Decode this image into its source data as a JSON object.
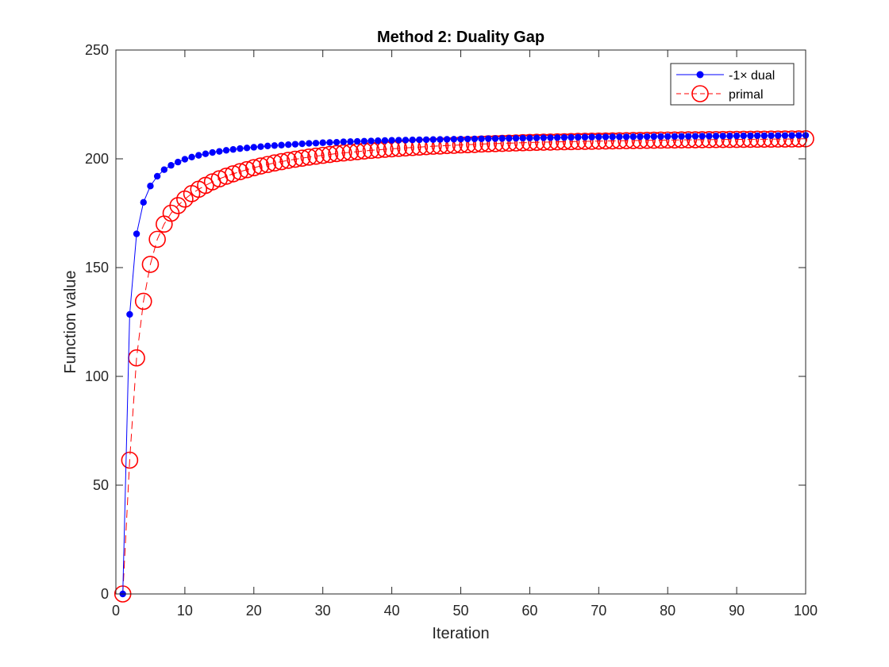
{
  "chart_data": {
    "type": "line",
    "title": "Method 2: Duality Gap",
    "xlabel": "Iteration",
    "ylabel": "Function value",
    "xlim": [
      0,
      100
    ],
    "ylim": [
      0,
      250
    ],
    "xticks": [
      0,
      10,
      20,
      30,
      40,
      50,
      60,
      70,
      80,
      90,
      100
    ],
    "yticks": [
      0,
      50,
      100,
      150,
      200,
      250
    ],
    "grid": false,
    "legend_position": "top-right",
    "series": [
      {
        "name": "-1× dual",
        "color": "#0000ff",
        "line_style": "solid",
        "marker": "filled-dot",
        "x": [
          1,
          2,
          3,
          4,
          5,
          6,
          7,
          8,
          9,
          10,
          11,
          12,
          13,
          14,
          15,
          16,
          17,
          18,
          19,
          20,
          21,
          22,
          23,
          24,
          25,
          26,
          27,
          28,
          29,
          30,
          31,
          32,
          33,
          34,
          35,
          36,
          37,
          38,
          39,
          40,
          41,
          42,
          43,
          44,
          45,
          46,
          47,
          48,
          49,
          50,
          51,
          52,
          53,
          54,
          55,
          56,
          57,
          58,
          59,
          60,
          61,
          62,
          63,
          64,
          65,
          66,
          67,
          68,
          69,
          70,
          71,
          72,
          73,
          74,
          75,
          76,
          77,
          78,
          79,
          80,
          81,
          82,
          83,
          84,
          85,
          86,
          87,
          88,
          89,
          90,
          91,
          92,
          93,
          94,
          95,
          96,
          97,
          98,
          99,
          100
        ],
        "y": [
          0,
          128.5,
          165.5,
          180,
          187.5,
          192,
          195,
          197,
          198.5,
          199.8,
          200.8,
          201.6,
          202.3,
          202.9,
          203.4,
          203.9,
          204.3,
          204.7,
          205,
          205.3,
          205.6,
          205.9,
          206.1,
          206.3,
          206.5,
          206.7,
          206.9,
          207.1,
          207.2,
          207.4,
          207.5,
          207.6,
          207.8,
          207.9,
          208,
          208.1,
          208.2,
          208.3,
          208.4,
          208.5,
          208.55,
          208.6,
          208.7,
          208.75,
          208.8,
          208.85,
          208.9,
          208.95,
          209,
          209.05,
          209.1,
          209.15,
          209.2,
          209.25,
          209.3,
          209.35,
          209.4,
          209.45,
          209.5,
          209.55,
          209.6,
          209.65,
          209.7,
          209.75,
          209.8,
          209.85,
          209.9,
          209.95,
          210,
          210.02,
          210.05,
          210.08,
          210.1,
          210.12,
          210.15,
          210.18,
          210.2,
          210.22,
          210.25,
          210.28,
          210.3,
          210.32,
          210.35,
          210.38,
          210.4,
          210.42,
          210.45,
          210.48,
          210.5,
          210.52,
          210.55,
          210.58,
          210.6,
          210.62,
          210.65,
          210.68,
          210.7,
          210.72,
          210.75,
          210.8
        ]
      },
      {
        "name": "primal",
        "color": "#ff0000",
        "line_style": "dashed",
        "marker": "open-circle",
        "x": [
          1,
          2,
          3,
          4,
          5,
          6,
          7,
          8,
          9,
          10,
          11,
          12,
          13,
          14,
          15,
          16,
          17,
          18,
          19,
          20,
          21,
          22,
          23,
          24,
          25,
          26,
          27,
          28,
          29,
          30,
          31,
          32,
          33,
          34,
          35,
          36,
          37,
          38,
          39,
          40,
          41,
          42,
          43,
          44,
          45,
          46,
          47,
          48,
          49,
          50,
          51,
          52,
          53,
          54,
          55,
          56,
          57,
          58,
          59,
          60,
          61,
          62,
          63,
          64,
          65,
          66,
          67,
          68,
          69,
          70,
          71,
          72,
          73,
          74,
          75,
          76,
          77,
          78,
          79,
          80,
          81,
          82,
          83,
          84,
          85,
          86,
          87,
          88,
          89,
          90,
          91,
          92,
          93,
          94,
          95,
          96,
          97,
          98,
          99,
          100
        ],
        "y": [
          0,
          61.5,
          108.5,
          134.5,
          151.5,
          163,
          170,
          175,
          178.5,
          181.5,
          184,
          186,
          187.8,
          189.4,
          190.8,
          192,
          193.1,
          194.1,
          195,
          195.9,
          196.7,
          197.4,
          198.1,
          198.7,
          199.3,
          199.8,
          200.3,
          200.8,
          201.2,
          201.6,
          202,
          202.4,
          202.7,
          203,
          203.3,
          203.6,
          203.9,
          204.1,
          204.4,
          204.6,
          204.8,
          205,
          205.2,
          205.4,
          205.6,
          205.8,
          205.9,
          206.1,
          206.2,
          206.4,
          206.5,
          206.6,
          206.8,
          206.9,
          207,
          207.1,
          207.2,
          207.3,
          207.4,
          207.5,
          207.6,
          207.65,
          207.7,
          207.8,
          207.85,
          207.9,
          208,
          208.05,
          208.1,
          208.15,
          208.2,
          208.25,
          208.3,
          208.35,
          208.4,
          208.45,
          208.5,
          208.55,
          208.6,
          208.62,
          208.65,
          208.7,
          208.72,
          208.75,
          208.8,
          208.82,
          208.85,
          208.88,
          208.9,
          208.92,
          208.95,
          208.98,
          209,
          209.02,
          209.05,
          209.08,
          209.1,
          209.12,
          209.15,
          209.2
        ]
      }
    ]
  }
}
